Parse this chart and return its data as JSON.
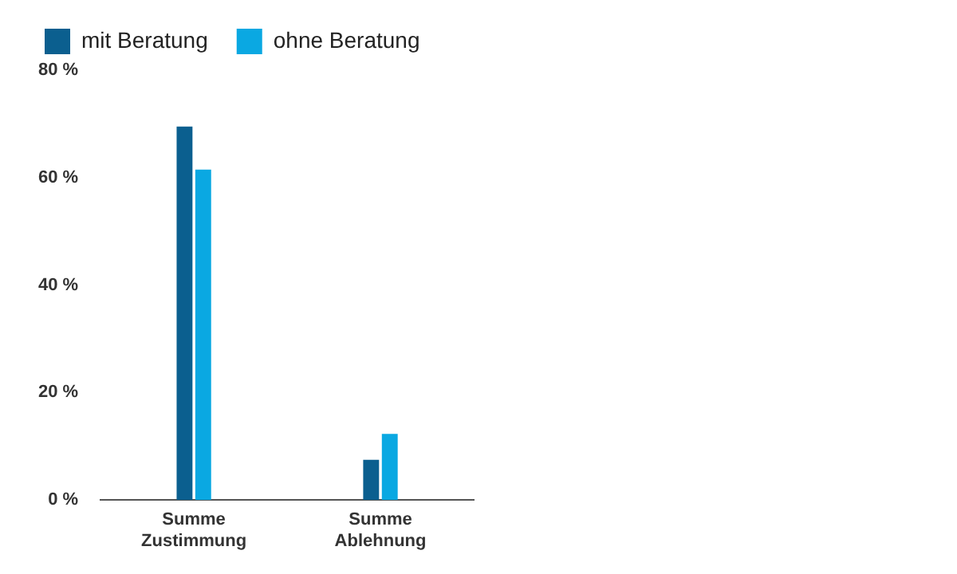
{
  "chart_data": {
    "type": "bar",
    "categories": [
      "Summe Zustimmung",
      "Summe Ablehnung"
    ],
    "series": [
      {
        "name": "mit Beratung",
        "color": "#0b5f8f",
        "values": [
          69.5,
          7.5
        ]
      },
      {
        "name": "ohne Beratung",
        "color": "#0aa8e2",
        "values": [
          61.5,
          12.3
        ]
      }
    ],
    "ylim": [
      0,
      80
    ],
    "yticks": [
      {
        "value": 0,
        "label": "0 %"
      },
      {
        "value": 20,
        "label": "20 %"
      },
      {
        "value": 40,
        "label": "40 %"
      },
      {
        "value": 60,
        "label": "60 %"
      },
      {
        "value": 80,
        "label": "80 %"
      }
    ],
    "grid": false,
    "legend": "top left"
  }
}
